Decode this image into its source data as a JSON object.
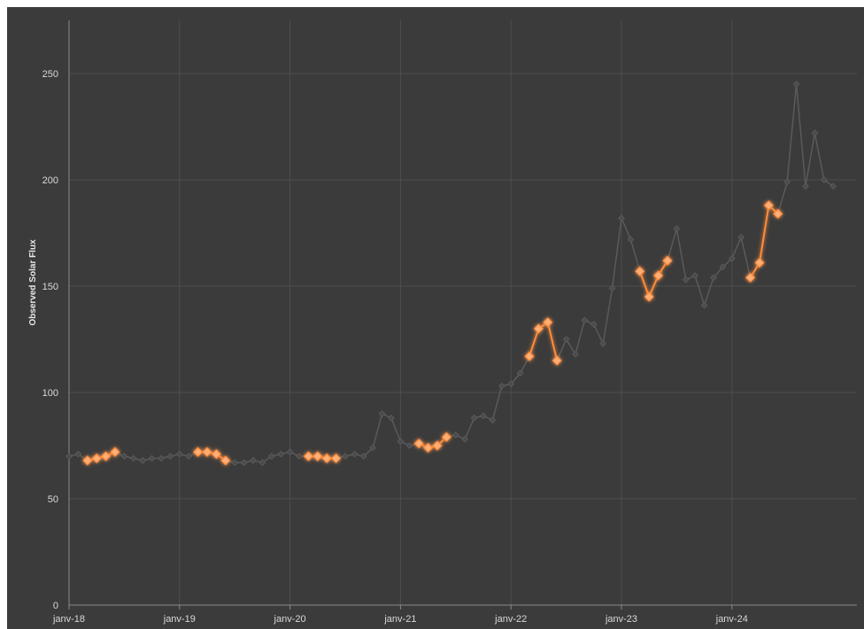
{
  "chart_data": {
    "type": "line",
    "title": "",
    "xlabel": "",
    "ylabel": "Observed Solar Flux",
    "ylim": [
      0,
      275
    ],
    "yticks": [
      0,
      50,
      100,
      150,
      200,
      250
    ],
    "x_start_month": "2018-01",
    "xticks": [
      {
        "label": "janv-18",
        "date": "2018-01"
      },
      {
        "label": "janv-19",
        "date": "2019-01"
      },
      {
        "label": "janv-20",
        "date": "2020-01"
      },
      {
        "label": "janv-21",
        "date": "2021-01"
      },
      {
        "label": "janv-22",
        "date": "2022-01"
      },
      {
        "label": "janv-23",
        "date": "2023-01"
      },
      {
        "label": "janv-24",
        "date": "2024-01"
      }
    ],
    "grid": true,
    "series": [
      {
        "role": "all-months",
        "color": "#5a5a5a",
        "values": [
          70,
          71,
          68,
          69,
          70,
          72,
          70,
          69,
          68,
          69,
          69,
          70,
          71,
          70,
          72,
          72,
          71,
          68,
          67,
          67,
          68,
          67,
          70,
          71,
          72,
          70,
          70,
          69,
          69,
          69,
          70,
          71,
          70,
          74,
          90,
          88,
          77,
          75,
          76,
          74,
          75,
          79,
          80,
          78,
          88,
          89,
          87,
          103,
          104,
          109,
          117,
          130,
          133,
          115,
          125,
          118,
          134,
          132,
          123,
          149,
          182,
          172,
          157,
          145,
          155,
          162,
          177,
          153,
          155,
          141,
          154,
          159,
          163,
          173,
          154,
          161,
          188,
          184,
          199,
          245,
          197,
          222,
          200,
          197
        ]
      },
      {
        "role": "highlighted-segments",
        "color": "#ff8c3a",
        "segments": [
          {
            "start_index": 2,
            "values": [
              68,
              69,
              70,
              72
            ]
          },
          {
            "start_index": 14,
            "values": [
              72,
              72,
              71,
              68
            ]
          },
          {
            "start_index": 26,
            "values": [
              70,
              70,
              69,
              69
            ]
          },
          {
            "start_index": 38,
            "values": [
              76,
              74,
              75,
              79
            ]
          },
          {
            "start_index": 50,
            "values": [
              117,
              130,
              133,
              115
            ]
          },
          {
            "start_index": 62,
            "values": [
              157,
              145,
              155,
              162
            ]
          },
          {
            "start_index": 74,
            "values": [
              154,
              161,
              188,
              184
            ]
          }
        ]
      }
    ]
  }
}
